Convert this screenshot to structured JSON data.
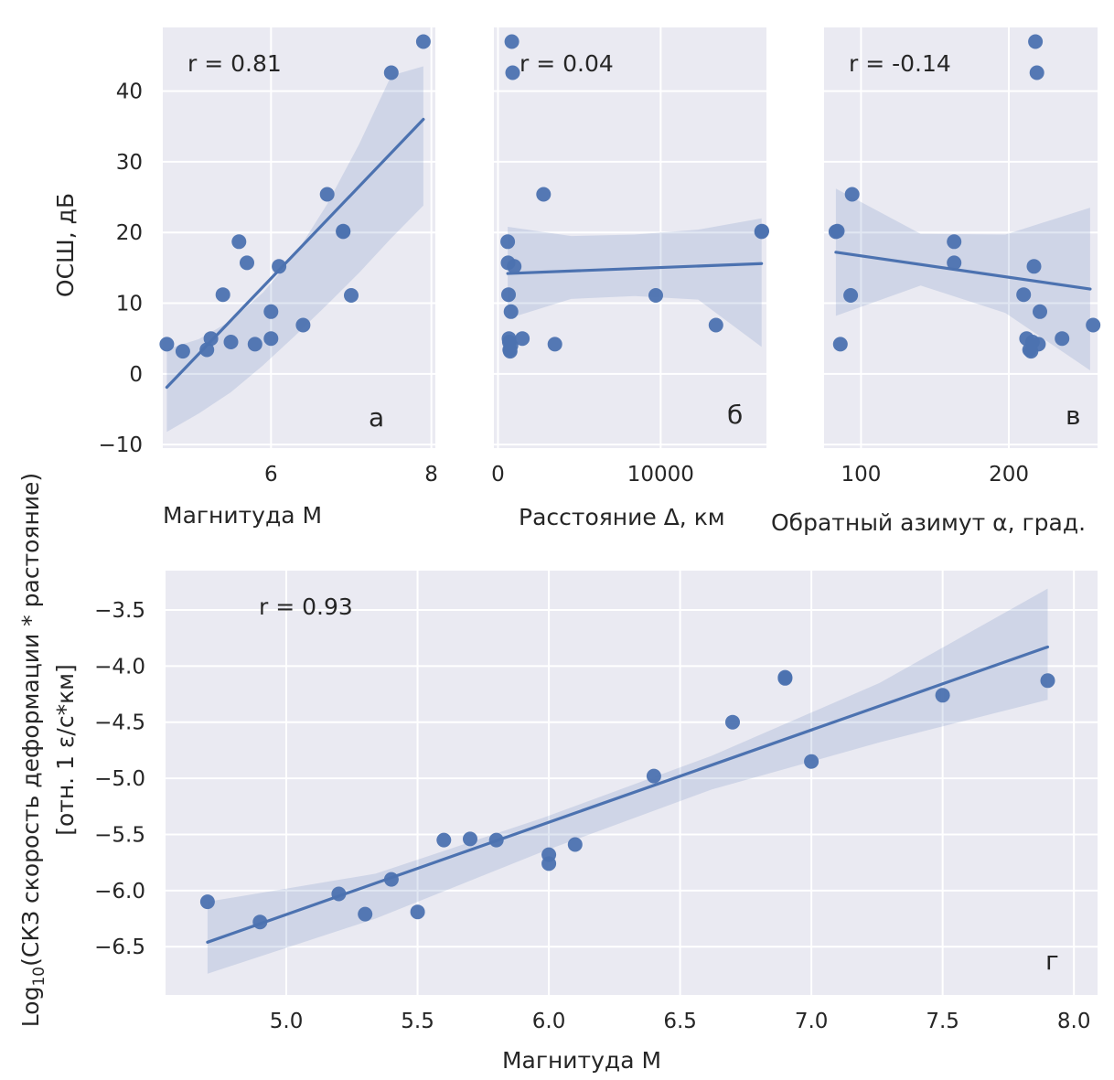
{
  "chart_data": [
    {
      "type": "scatter",
      "panel_label": "а",
      "annotation": "r = 0.81",
      "xlabel": "Магнитуда M",
      "ylabel": "ОСШ, дБ",
      "xlim": [
        4.65,
        8.05
      ],
      "ylim": [
        -10.5,
        49
      ],
      "xticks": [
        6,
        8
      ],
      "xtick_labels": [
        "6",
        "8"
      ],
      "yticks": [
        -10,
        0,
        10,
        20,
        30,
        40
      ],
      "ytick_labels": [
        "−10",
        "0",
        "10",
        "20",
        "30",
        "40"
      ],
      "x": [
        4.7,
        4.9,
        5.2,
        5.25,
        5.4,
        5.5,
        5.6,
        5.7,
        5.8,
        6.0,
        6.0,
        6.1,
        6.4,
        6.7,
        6.9,
        6.9,
        7.0,
        7.5,
        7.9
      ],
      "y": [
        4.2,
        3.2,
        3.4,
        5.0,
        11.2,
        4.5,
        18.7,
        15.7,
        4.2,
        5.0,
        8.8,
        15.2,
        6.9,
        25.4,
        20.1,
        20.2,
        11.1,
        42.6,
        47.0
      ],
      "fit": {
        "x": [
          4.7,
          7.9
        ],
        "y": [
          -1.9,
          36.0
        ]
      },
      "ci_upper": [
        3.5,
        4.9,
        7.5,
        11.5,
        16.8,
        24.0,
        32.5,
        42.2,
        43.5
      ],
      "ci_lower": [
        -8.2,
        -5.6,
        -2.6,
        1.2,
        5.4,
        9.8,
        14.3,
        19.2,
        23.8
      ],
      "grid": true,
      "color": "#4c72b0",
      "background": "#eaeaf2"
    },
    {
      "type": "scatter",
      "panel_label": "б",
      "annotation": "r = 0.04",
      "xlabel": "Расстояние Δ, км",
      "ylabel": "",
      "xlim": [
        -250,
        16500
      ],
      "ylim": [
        -10.5,
        49
      ],
      "xticks": [
        0,
        10000
      ],
      "xtick_labels": [
        "0",
        "10000"
      ],
      "x": [
        600,
        620,
        650,
        680,
        700,
        720,
        750,
        800,
        850,
        900,
        1000,
        1500,
        2800,
        3500,
        9700,
        13400,
        16200,
        16220,
        800
      ],
      "y": [
        18.7,
        15.7,
        11.2,
        5.0,
        4.5,
        3.4,
        3.2,
        8.8,
        47.0,
        42.6,
        15.2,
        5.0,
        25.4,
        4.2,
        11.1,
        6.9,
        20.1,
        20.2,
        4.0
      ],
      "fit": {
        "x": [
          600,
          16200
        ],
        "y": [
          14.2,
          15.6
        ]
      },
      "ci_upper": [
        20.8,
        19.5,
        19.7,
        20.4,
        22.0
      ],
      "ci_lower": [
        7.8,
        10.6,
        11.0,
        10.5,
        3.8
      ],
      "grid": true,
      "color": "#4c72b0",
      "background": "#eaeaf2"
    },
    {
      "type": "scatter",
      "panel_label": "в",
      "annotation": "r = -0.14",
      "xlabel": "Обратный азимут α, град.",
      "ylabel": "",
      "xlim": [
        75,
        260
      ],
      "ylim": [
        -10.5,
        49
      ],
      "xticks": [
        100,
        200
      ],
      "xtick_labels": [
        "100",
        "200"
      ],
      "x": [
        83,
        84,
        86,
        93,
        94,
        163,
        163,
        210,
        212,
        214,
        215,
        216,
        217,
        218,
        219,
        220,
        221,
        236,
        257
      ],
      "y": [
        20.1,
        20.2,
        4.2,
        11.1,
        25.4,
        18.7,
        15.7,
        11.2,
        5.0,
        3.4,
        3.2,
        4.5,
        15.2,
        47.0,
        42.6,
        4.2,
        8.8,
        5.0,
        6.9
      ],
      "fit": {
        "x": [
          83,
          255
        ],
        "y": [
          17.2,
          12.0
        ]
      },
      "ci_upper": [
        26.2,
        19.8,
        19.7,
        23.5
      ],
      "ci_lower": [
        8.2,
        12.5,
        8.6,
        0.5
      ],
      "grid": true,
      "color": "#4c72b0",
      "background": "#eaeaf2"
    },
    {
      "type": "scatter",
      "panel_label": "г",
      "annotation": "r = 0.93",
      "xlabel": "Магнитуда M",
      "ylabel_line1_prefix": "Log",
      "ylabel_line1_sub": "10",
      "ylabel_line1_rest": "(СКЗ скорость деформации * растояние)",
      "ylabel_line2": "[отн. 1 ε/с*км]",
      "xlim": [
        4.54,
        8.09
      ],
      "ylim": [
        -6.93,
        -3.15
      ],
      "xticks": [
        5.0,
        5.5,
        6.0,
        6.5,
        7.0,
        7.5,
        8.0
      ],
      "xtick_labels": [
        "5.0",
        "5.5",
        "6.0",
        "6.5",
        "7.0",
        "7.5",
        "8.0"
      ],
      "yticks": [
        -6.5,
        -6.0,
        -5.5,
        -5.0,
        -4.5,
        -4.0,
        -3.5
      ],
      "ytick_labels": [
        "−6.5",
        "−6.0",
        "−5.5",
        "−5.0",
        "−4.5",
        "−4.0",
        "−3.5"
      ],
      "x": [
        4.7,
        4.9,
        5.2,
        5.3,
        5.4,
        5.5,
        5.6,
        5.7,
        5.8,
        6.0,
        6.0,
        6.1,
        6.4,
        6.7,
        6.9,
        6.9,
        7.0,
        7.5,
        7.9
      ],
      "y": [
        -6.1,
        -6.28,
        -6.03,
        -6.21,
        -5.9,
        -6.19,
        -5.55,
        -5.54,
        -5.55,
        -5.68,
        -5.76,
        -5.59,
        -4.98,
        -4.5,
        -4.1,
        -4.11,
        -4.85,
        -4.26,
        -4.13
      ],
      "fit": {
        "x": [
          4.7,
          7.9
        ],
        "y": [
          -6.46,
          -3.83
        ]
      },
      "ci_upper": [
        -6.1,
        -5.85,
        -5.35,
        -4.8,
        -4.15,
        -3.31
      ],
      "ci_lower": [
        -6.74,
        -6.25,
        -5.65,
        -5.1,
        -4.68,
        -4.3
      ],
      "grid": true,
      "color": "#4c72b0",
      "background": "#eaeaf2"
    }
  ]
}
